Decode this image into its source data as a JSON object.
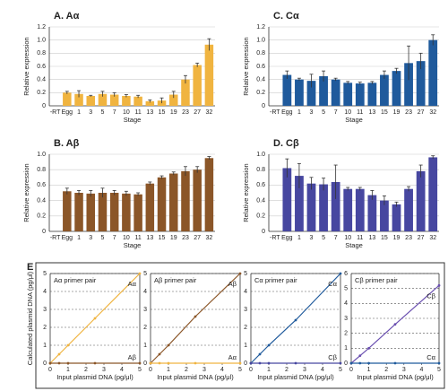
{
  "panel_label": "E",
  "chart_data": [
    {
      "type": "bar",
      "title": "A. Aα",
      "xlabel": "Stage",
      "ylabel": "Relative expression",
      "color": "#f0b440",
      "categories": [
        "-RT",
        "Egg",
        "1",
        "3",
        "5",
        "7",
        "10",
        "11",
        "13",
        "15",
        "19",
        "23",
        "27",
        "32"
      ],
      "values": [
        0,
        0.2,
        0.18,
        0.15,
        0.18,
        0.17,
        0.15,
        0.14,
        0.07,
        0.08,
        0.17,
        0.4,
        0.62,
        0.93
      ],
      "errors": [
        0,
        0.02,
        0.05,
        0.01,
        0.04,
        0.03,
        0.02,
        0.02,
        0.02,
        0.04,
        0.05,
        0.06,
        0.03,
        0.09
      ],
      "ylim": [
        0,
        1.2
      ],
      "yticks": [
        0,
        0.2,
        0.4,
        0.6,
        0.8,
        {
          "value": 1,
          "label": "1.0"
        },
        1.2
      ],
      "grid": true
    },
    {
      "type": "bar",
      "title": "C. Cα",
      "xlabel": "Stage",
      "ylabel": "Relative expression",
      "color": "#1f5a9c",
      "categories": [
        "-RT",
        "Egg",
        "1",
        "3",
        "5",
        "7",
        "10",
        "11",
        "13",
        "15",
        "19",
        "23",
        "27",
        "32"
      ],
      "values": [
        0,
        0.47,
        0.4,
        0.38,
        0.45,
        0.4,
        0.35,
        0.34,
        0.35,
        0.47,
        0.53,
        0.65,
        0.68,
        1.0
      ],
      "errors": [
        0,
        0.06,
        0.02,
        0.1,
        0.08,
        0.02,
        0.02,
        0.02,
        0.02,
        0.06,
        0.04,
        0.26,
        0.12,
        0.08
      ],
      "ylim": [
        0,
        1.2
      ],
      "yticks": [
        0,
        0.2,
        0.4,
        0.6,
        0.8,
        {
          "value": 1,
          "label": "1.0"
        },
        1.2
      ],
      "grid": true
    },
    {
      "type": "bar",
      "title": "B. Aβ",
      "xlabel": "Stage",
      "ylabel": "Relative expression",
      "color": "#8b5628",
      "categories": [
        "-RT",
        "Egg",
        "1",
        "3",
        "5",
        "7",
        "10",
        "11",
        "13",
        "15",
        "19",
        "23",
        "27",
        "32"
      ],
      "values": [
        0,
        0.52,
        0.5,
        0.49,
        0.5,
        0.5,
        0.49,
        0.48,
        0.62,
        0.7,
        0.75,
        0.78,
        0.8,
        0.95
      ],
      "errors": [
        0,
        0.04,
        0.03,
        0.04,
        0.06,
        0.03,
        0.03,
        0.02,
        0.02,
        0.02,
        0.02,
        0.06,
        0.04,
        0.02
      ],
      "ylim": [
        0,
        1.0
      ],
      "yticks": [
        0,
        0.2,
        0.4,
        0.6,
        0.8,
        {
          "value": 1,
          "label": "1.0"
        }
      ],
      "grid": true
    },
    {
      "type": "bar",
      "title": "D. Cβ",
      "xlabel": "Stage",
      "ylabel": "Relative expression",
      "color": "#4747a0",
      "categories": [
        "-RT",
        "Egg",
        "1",
        "3",
        "5",
        "7",
        "10",
        "11",
        "13",
        "15",
        "19",
        "23",
        "27",
        "32"
      ],
      "values": [
        0,
        0.82,
        0.72,
        0.62,
        0.61,
        0.64,
        0.55,
        0.55,
        0.47,
        0.4,
        0.35,
        0.55,
        0.78,
        0.96
      ],
      "errors": [
        0,
        0.12,
        0.16,
        0.08,
        0.08,
        0.22,
        0.02,
        0.02,
        0.06,
        0.06,
        0.03,
        0.03,
        0.08,
        0.02
      ],
      "ylim": [
        0,
        1.0
      ],
      "yticks": [
        0,
        0.2,
        0.4,
        0.6,
        0.8,
        {
          "value": 1,
          "label": "1.0"
        }
      ],
      "grid": true
    },
    {
      "type": "line",
      "title": "Aα primer pair",
      "xlabel": "Input plasmid DNA (pg/μl)",
      "ylabel": "Calculated plasmid DNA (pg/μl)",
      "x": [
        0,
        0.5,
        1,
        2.5,
        5
      ],
      "xlim": [
        0,
        5
      ],
      "xticks": [
        0,
        1,
        2,
        3,
        4,
        5
      ],
      "ylim": [
        0,
        5
      ],
      "yticks": [
        0,
        1,
        2,
        3,
        4,
        5
      ],
      "grid": true,
      "series": [
        {
          "name": "Aα",
          "color": "#f0b440",
          "values": [
            0,
            0.5,
            1,
            2.5,
            5
          ]
        },
        {
          "name": "Aβ",
          "color": "#8b5628",
          "values": [
            0,
            0,
            0,
            0,
            0
          ]
        }
      ]
    },
    {
      "type": "line",
      "title": "Aβ primer pair",
      "xlabel": "Input plasmid DNA (pg/μl)",
      "x": [
        0,
        0.5,
        1,
        2.5,
        5
      ],
      "xlim": [
        0,
        5
      ],
      "xticks": [
        0,
        1,
        2,
        3,
        4,
        5
      ],
      "ylim": [
        0,
        5
      ],
      "yticks": [
        0,
        1,
        2,
        3,
        4,
        5
      ],
      "grid": true,
      "series": [
        {
          "name": "Aβ",
          "color": "#8b5628",
          "values": [
            0,
            0.5,
            1,
            2.6,
            5
          ]
        },
        {
          "name": "Aα",
          "color": "#f0b440",
          "values": [
            0,
            0,
            0,
            0,
            0
          ]
        }
      ]
    },
    {
      "type": "line",
      "title": "Cα primer pair",
      "xlabel": "Input plasmid DNA (pg/μl)",
      "x": [
        0,
        0.5,
        1,
        2.5,
        5
      ],
      "xlim": [
        0,
        5
      ],
      "xticks": [
        0,
        1,
        2,
        3,
        4,
        5
      ],
      "ylim": [
        0,
        5
      ],
      "yticks": [
        0,
        1,
        2,
        3,
        4,
        5
      ],
      "grid": true,
      "series": [
        {
          "name": "Cα",
          "color": "#1f5a9c",
          "values": [
            0,
            0.5,
            1,
            2.4,
            5
          ]
        },
        {
          "name": "Cβ",
          "color": "#4747a0",
          "values": [
            0,
            0,
            0,
            0,
            0
          ]
        }
      ]
    },
    {
      "type": "line",
      "title": "Cβ primer pair",
      "xlabel": "Input plasmid DNA (pg/μl)",
      "x": [
        0,
        0.5,
        1,
        2.5,
        5
      ],
      "xlim": [
        0,
        5
      ],
      "xticks": [
        0,
        1,
        2,
        3,
        4,
        5
      ],
      "ylim": [
        0,
        6
      ],
      "yticks": [
        0,
        1,
        2,
        3,
        4,
        5,
        6
      ],
      "grid": true,
      "series": [
        {
          "name": "Cβ",
          "color": "#6a4fb0",
          "values": [
            0,
            0.5,
            1,
            2.6,
            5.2
          ]
        },
        {
          "name": "Cα",
          "color": "#1f5a9c",
          "values": [
            0,
            0,
            0,
            0,
            0
          ]
        }
      ]
    }
  ]
}
